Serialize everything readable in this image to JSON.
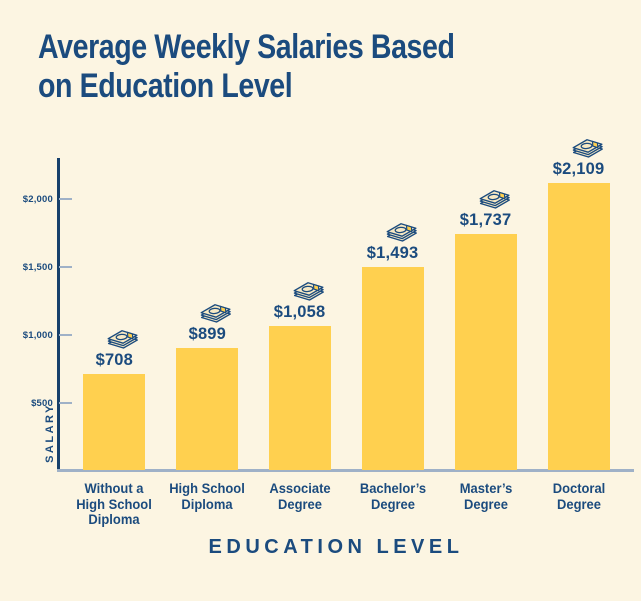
{
  "title": {
    "line1": "Average Weekly Salaries Based",
    "line2": "on Education Level"
  },
  "chart_data": {
    "type": "bar",
    "title": "Average Weekly Salaries Based on Education Level",
    "xlabel": "EDUCATION LEVEL",
    "ylabel": "SALARY",
    "categories": [
      "Without a High School Diploma",
      "High School Diploma",
      "Associate Degree",
      "Bachelor’s Degree",
      "Master’s Degree",
      "Doctoral Degree"
    ],
    "category_lines": [
      [
        "Without a",
        "High School",
        "Diploma"
      ],
      [
        "High School",
        "Diploma"
      ],
      [
        "Associate",
        "Degree"
      ],
      [
        "Bachelor’s",
        "Degree"
      ],
      [
        "Master’s",
        "Degree"
      ],
      [
        "Doctoral",
        "Degree"
      ]
    ],
    "values": [
      708,
      899,
      1058,
      1493,
      1737,
      2109
    ],
    "value_labels": [
      "$708",
      "$899",
      "$1,058",
      "$1,493",
      "$1,737",
      "$2,109"
    ],
    "yticks": [
      {
        "value": 500,
        "label": "$500"
      },
      {
        "value": 1000,
        "label": "$1,000"
      },
      {
        "value": 1500,
        "label": "$1,500"
      },
      {
        "value": 2000,
        "label": "$2,000"
      }
    ],
    "ylim": [
      0,
      2250
    ],
    "grid": false,
    "legend": "none",
    "bar_color": "#FFD04F",
    "bar_icon": "money-stack-icon"
  },
  "colors": {
    "background": "#FCF5E2",
    "navy": "#1B4B7E",
    "bar_yellow": "#FFD04F",
    "axis_gray": "#9FB1C7",
    "axis_navy": "#17406B",
    "bill_fill": "#F7E9C4"
  }
}
